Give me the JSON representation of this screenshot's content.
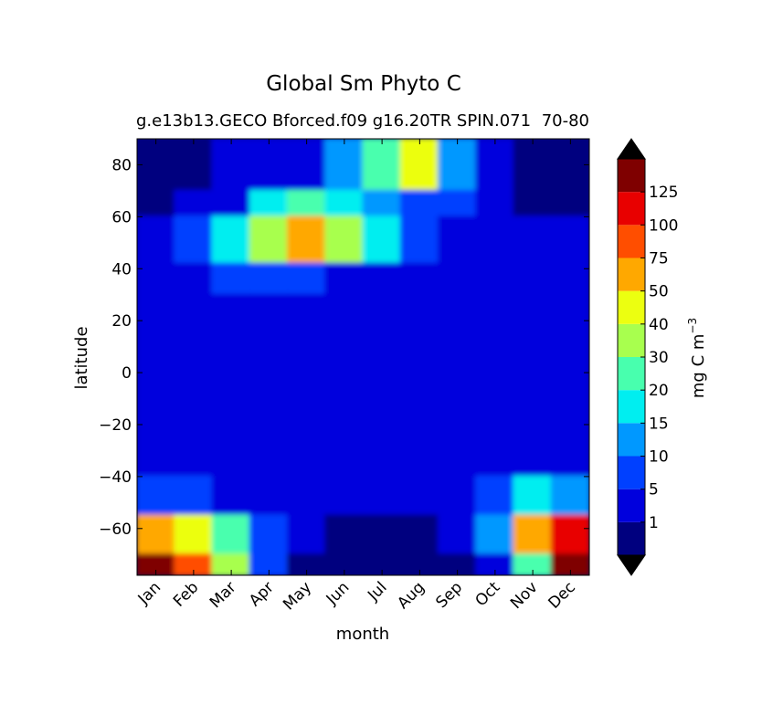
{
  "chart_data": {
    "type": "heatmap",
    "title": "Global Sm Phyto C",
    "subtitle": "g.e13b13.GECO Bforced.f09 g16.20TR SPIN.071",
    "subtitle_right": "70-80",
    "xlabel": "month",
    "ylabel": "latitude",
    "x_categories": [
      "Jan",
      "Feb",
      "Mar",
      "Apr",
      "May",
      "Jun",
      "Jul",
      "Aug",
      "Sep",
      "Oct",
      "Nov",
      "Dec"
    ],
    "y_ticks": [
      80,
      60,
      40,
      20,
      0,
      -20,
      -40,
      -60
    ],
    "y_tick_labels": [
      "80",
      "60",
      "40",
      "20",
      "0",
      "−20",
      "−40",
      "−60"
    ],
    "ylim": [
      -78,
      90
    ],
    "colorbar": {
      "label": "mg C m",
      "label_exponent": "−3",
      "levels": [
        1,
        5,
        10,
        15,
        20,
        30,
        40,
        50,
        75,
        100,
        125
      ],
      "tick_labels": [
        "1",
        "5",
        "10",
        "15",
        "20",
        "30",
        "40",
        "50",
        "75",
        "100",
        "125"
      ],
      "colors": [
        "#00007f",
        "#0000dd",
        "#0040ff",
        "#0098ff",
        "#00eef0",
        "#48ffae",
        "#a8ff4e",
        "#ecff10",
        "#ffa800",
        "#ff4e00",
        "#e80000",
        "#7f0000"
      ],
      "extend": "both"
    },
    "band_data_level_index": [
      {
        "lat": [
          90,
          70
        ],
        "values": [
          0,
          0,
          1,
          1,
          1,
          3,
          5,
          7,
          3,
          1,
          0,
          0
        ]
      },
      {
        "lat": [
          70,
          60
        ],
        "values": [
          0,
          1,
          1,
          4,
          5,
          4,
          3,
          2,
          2,
          1,
          0,
          0
        ]
      },
      {
        "lat": [
          60,
          42
        ],
        "values": [
          1,
          2,
          4,
          6,
          8,
          6,
          4,
          2,
          1,
          1,
          1,
          1
        ]
      },
      {
        "lat": [
          42,
          30
        ],
        "values": [
          1,
          1,
          2,
          2,
          2,
          1,
          1,
          1,
          1,
          1,
          1,
          1
        ]
      },
      {
        "lat": [
          30,
          -40
        ],
        "values": [
          1,
          1,
          1,
          1,
          1,
          1,
          1,
          1,
          1,
          1,
          1,
          1
        ]
      },
      {
        "lat": [
          -40,
          -55
        ],
        "values": [
          2,
          2,
          1,
          1,
          1,
          1,
          1,
          1,
          1,
          2,
          4,
          3
        ]
      },
      {
        "lat": [
          -55,
          -70
        ],
        "values": [
          8,
          7,
          5,
          2,
          1,
          0,
          0,
          0,
          1,
          3,
          8,
          10
        ]
      },
      {
        "lat": [
          -70,
          -78
        ],
        "values": [
          11,
          9,
          6,
          2,
          0,
          0,
          0,
          0,
          0,
          1,
          5,
          11
        ]
      }
    ]
  }
}
